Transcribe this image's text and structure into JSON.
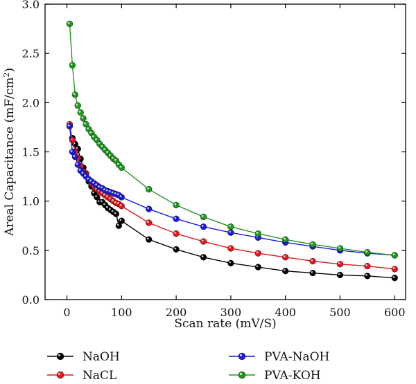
{
  "chart_data": {
    "type": "line",
    "xlabel": "Scan rate (mV/S)",
    "ylabel": "Areal Capacitance (mF/cm",
    "ylabel_superscript": "2",
    "ylabel_suffix": ")",
    "xlim": [
      -40,
      620
    ],
    "ylim": [
      0.0,
      3.0
    ],
    "xticks": [
      0,
      100,
      200,
      300,
      400,
      500,
      600
    ],
    "yticks": [
      0.0,
      0.5,
      1.0,
      1.5,
      2.0,
      2.5,
      3.0
    ],
    "ytick_labels": [
      "0.0",
      "0.5",
      "1.0",
      "1.5",
      "2.0",
      "2.5",
      "3.0"
    ],
    "grid": false,
    "legend_position": "below plot",
    "series": [
      {
        "name": "NaOH",
        "color": "#000000",
        "x": [
          10,
          15,
          20,
          25,
          30,
          35,
          40,
          45,
          50,
          55,
          60,
          65,
          70,
          75,
          80,
          85,
          90,
          95,
          100,
          150,
          200,
          250,
          300,
          350,
          400,
          450,
          500,
          550,
          600
        ],
        "y": [
          1.64,
          1.58,
          1.53,
          1.43,
          1.34,
          1.28,
          1.2,
          1.15,
          1.08,
          1.04,
          0.99,
          0.99,
          0.96,
          0.93,
          0.91,
          0.89,
          0.87,
          0.75,
          0.8,
          0.61,
          0.51,
          0.43,
          0.37,
          0.33,
          0.29,
          0.27,
          0.25,
          0.24,
          0.22
        ]
      },
      {
        "name": "NaCL",
        "color": "#e8141c",
        "x": [
          5,
          10,
          15,
          20,
          25,
          30,
          35,
          40,
          45,
          50,
          55,
          60,
          65,
          70,
          75,
          80,
          85,
          90,
          95,
          100,
          150,
          200,
          250,
          300,
          350,
          400,
          450,
          500,
          550,
          600
        ],
        "y": [
          1.78,
          1.62,
          1.5,
          1.44,
          1.36,
          1.3,
          1.27,
          1.22,
          1.18,
          1.15,
          1.12,
          1.1,
          1.08,
          1.06,
          1.04,
          1.02,
          1.0,
          0.98,
          0.97,
          0.95,
          0.78,
          0.67,
          0.59,
          0.52,
          0.47,
          0.43,
          0.39,
          0.36,
          0.34,
          0.31
        ]
      },
      {
        "name": "PVA-NaOH",
        "color": "#1a1ae0",
        "x": [
          5,
          10,
          15,
          20,
          25,
          30,
          35,
          40,
          45,
          50,
          55,
          60,
          65,
          70,
          75,
          80,
          85,
          90,
          95,
          100,
          150,
          200,
          250,
          300,
          350,
          400,
          450,
          500,
          550,
          600
        ],
        "y": [
          1.76,
          1.5,
          1.45,
          1.37,
          1.31,
          1.28,
          1.25,
          1.22,
          1.2,
          1.18,
          1.16,
          1.14,
          1.13,
          1.11,
          1.1,
          1.09,
          1.08,
          1.07,
          1.06,
          1.04,
          0.92,
          0.82,
          0.74,
          0.68,
          0.63,
          0.58,
          0.54,
          0.5,
          0.47,
          0.45
        ]
      },
      {
        "name": "PVA-KOH",
        "color": "#1d9a1d",
        "x": [
          5,
          10,
          15,
          20,
          25,
          30,
          35,
          40,
          45,
          50,
          55,
          60,
          65,
          70,
          75,
          80,
          85,
          90,
          95,
          100,
          150,
          200,
          250,
          300,
          350,
          400,
          450,
          500,
          550,
          600
        ],
        "y": [
          2.8,
          2.38,
          2.08,
          1.97,
          1.9,
          1.84,
          1.78,
          1.73,
          1.69,
          1.65,
          1.62,
          1.58,
          1.55,
          1.52,
          1.49,
          1.46,
          1.43,
          1.41,
          1.37,
          1.34,
          1.12,
          0.96,
          0.84,
          0.74,
          0.67,
          0.61,
          0.56,
          0.52,
          0.48,
          0.45
        ]
      }
    ]
  }
}
